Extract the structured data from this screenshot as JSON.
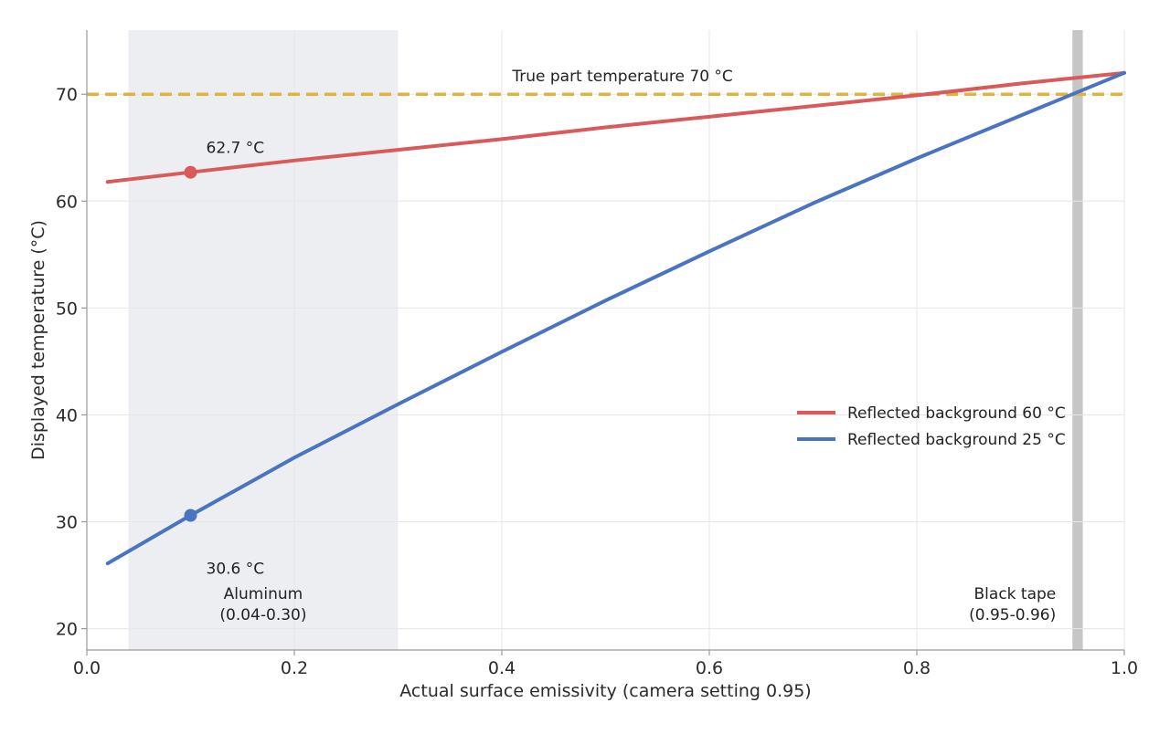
{
  "chart_data": {
    "type": "line",
    "title": "",
    "xlabel": "Actual surface emissivity (camera setting 0.95)",
    "ylabel": "Displayed temperature (°C)",
    "xlim": [
      0.0,
      1.0
    ],
    "ylim": [
      18,
      76
    ],
    "xticks": [
      0.0,
      0.2,
      0.4,
      0.6,
      0.8,
      1.0
    ],
    "xtick_labels": [
      "0.0",
      "0.2",
      "0.4",
      "0.6",
      "0.8",
      "1.0"
    ],
    "yticks": [
      20,
      30,
      40,
      50,
      60,
      70
    ],
    "ytick_labels": [
      "20",
      "30",
      "40",
      "50",
      "60",
      "70"
    ],
    "grid": true,
    "legend_position": "center-right",
    "series": [
      {
        "name": "Reflected background 60 °C",
        "color": "#d95a5a",
        "x": [
          0.02,
          0.1,
          0.2,
          0.3,
          0.4,
          0.5,
          0.6,
          0.7,
          0.8,
          0.9,
          1.0
        ],
        "y": [
          61.8,
          62.7,
          63.8,
          64.8,
          65.8,
          66.9,
          67.9,
          68.9,
          69.9,
          71.0,
          72.0
        ],
        "highlight": {
          "x": 0.1,
          "y": 62.7,
          "label": "62.7 °C"
        }
      },
      {
        "name": "Reflected background 25 °C",
        "color": "#4a74c0",
        "x": [
          0.02,
          0.1,
          0.2,
          0.3,
          0.4,
          0.5,
          0.6,
          0.7,
          0.8,
          0.9,
          1.0
        ],
        "y": [
          26.1,
          30.6,
          36.0,
          41.0,
          45.9,
          50.7,
          55.3,
          59.8,
          64.0,
          68.0,
          72.0
        ],
        "highlight": {
          "x": 0.1,
          "y": 30.6,
          "label": "30.6 °C"
        }
      }
    ],
    "reference_line": {
      "y": 70,
      "label": "True part temperature 70 °C",
      "color": "#e3b23c",
      "style": "dashed"
    },
    "bands": [
      {
        "x0": 0.04,
        "x1": 0.3,
        "label_line1": "Aluminum",
        "label_line2": "(0.04-0.30)",
        "color": "#eceef2"
      },
      {
        "x0": 0.95,
        "x1": 0.96,
        "label_line1": "Black tape",
        "label_line2": "(0.95-0.96)",
        "color": "#c6c6c6"
      }
    ]
  }
}
